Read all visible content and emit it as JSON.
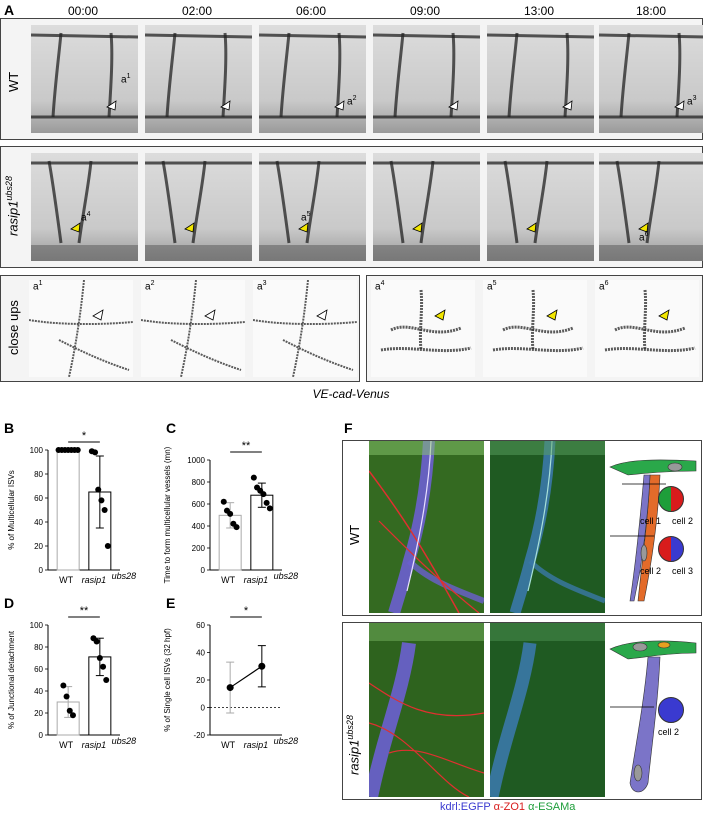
{
  "panels": {
    "A": "A",
    "B": "B",
    "C": "C",
    "D": "D",
    "E": "E",
    "F": "F"
  },
  "timepoints": [
    "00:00",
    "02:00",
    "06:00",
    "09:00",
    "13:00",
    "18:00"
  ],
  "row_labels": {
    "wt": "WT",
    "mutant_gene": "rasip1",
    "mutant_allele": "ubs28",
    "closeups": "close ups"
  },
  "wt_annotations": [
    {
      "base": "a",
      "sup": "1"
    },
    {
      "base": "a",
      "sup": "2"
    },
    {
      "base": "a",
      "sup": "3"
    }
  ],
  "mut_annotations": [
    {
      "base": "a",
      "sup": "4"
    },
    {
      "base": "a",
      "sup": "5"
    },
    {
      "base": "a",
      "sup": "6"
    }
  ],
  "closeup_labels": [
    {
      "base": "a",
      "sup": "1"
    },
    {
      "base": "a",
      "sup": "2"
    },
    {
      "base": "a",
      "sup": "3"
    },
    {
      "base": "a",
      "sup": "4"
    },
    {
      "base": "a",
      "sup": "5"
    },
    {
      "base": "a",
      "sup": "6"
    }
  ],
  "caption": "VE-cad-Venus",
  "colors": {
    "wt_arrow": "#ffffff",
    "mut_arrow": "#f2e600",
    "egfp": "#3a3ad0",
    "zo1": "#d81c1c",
    "esama": "#1e9e3a",
    "vessel_fill": "#7b74c8",
    "top_green": "#2aa84a"
  },
  "chart_data": [
    {
      "panel": "B",
      "type": "bar",
      "categories": [
        "WT",
        "rasip1ubs28"
      ],
      "values": [
        100,
        65
      ],
      "error": [
        0,
        30
      ],
      "points": [
        [
          100,
          100,
          100,
          100,
          100,
          100,
          100
        ],
        [
          99,
          98,
          67,
          58,
          50,
          20
        ]
      ],
      "ylabel": "% of Multicellular ISVs",
      "ylim": [
        0,
        100
      ],
      "yticks": [
        0,
        20,
        40,
        60,
        80,
        100
      ],
      "significance": "*"
    },
    {
      "panel": "C",
      "type": "bar",
      "categories": [
        "WT",
        "rasip1ubs28"
      ],
      "values": [
        497,
        680
      ],
      "error": [
        115,
        110
      ],
      "points": [
        [
          620,
          540,
          510,
          420,
          390
        ],
        [
          840,
          750,
          720,
          690,
          610,
          560
        ]
      ],
      "ylabel": "Time to form multicellular vessels (mn)",
      "ylim": [
        0,
        1000
      ],
      "yticks": [
        0,
        200,
        400,
        600,
        800,
        1000
      ],
      "significance": "**"
    },
    {
      "panel": "D",
      "type": "bar",
      "categories": [
        "WT",
        "rasip1ubs28"
      ],
      "values": [
        30,
        71
      ],
      "error": [
        14,
        17
      ],
      "points": [
        [
          45,
          35,
          22,
          18
        ],
        [
          88,
          85,
          70,
          62,
          50
        ]
      ],
      "ylabel": "% of Junctional detachment",
      "ylim": [
        0,
        100
      ],
      "yticks": [
        0,
        20,
        40,
        60,
        80,
        100
      ],
      "significance": "**"
    },
    {
      "panel": "E",
      "type": "line",
      "categories": [
        "WT",
        "rasip1ubs28"
      ],
      "values": [
        14.5,
        30
      ],
      "error": [
        18.5,
        15
      ],
      "ylabel": "% of Single cell ISVs (32 hpf)",
      "ylim": [
        -20,
        60
      ],
      "yticks": [
        -20,
        0,
        20,
        40,
        60
      ],
      "significance": "*"
    }
  ],
  "xcat": {
    "wt": "WT",
    "mut_gene": "rasip1",
    "mut_allele": "ubs28"
  },
  "f_labels": {
    "cell1": "cell 1",
    "cell2": "cell 2",
    "cell3": "cell 3"
  },
  "legend": {
    "egfp": "kdrl:EGFP",
    "zo1": "α-ZO1",
    "esama": "α-ESAMa"
  }
}
